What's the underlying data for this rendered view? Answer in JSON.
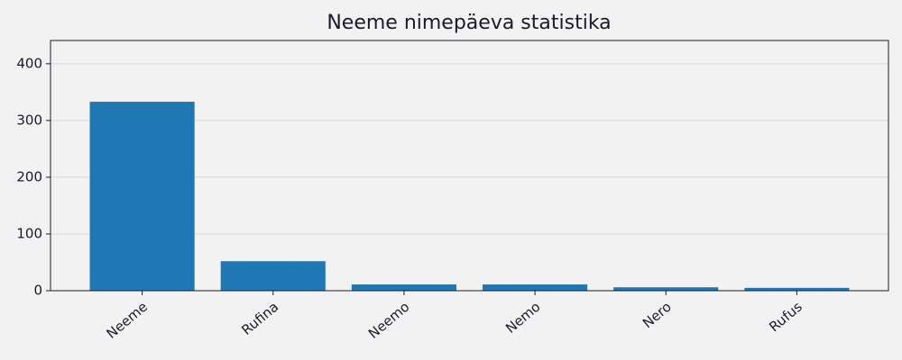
{
  "chart_data": {
    "type": "bar",
    "title": "Neeme nimepäeva statistika",
    "categories": [
      "Neeme",
      "Rufina",
      "Neemo",
      "Nemo",
      "Nero",
      "Rufus"
    ],
    "values": [
      333,
      52,
      11,
      11,
      6,
      5
    ],
    "color": "#1f77b4",
    "ylim": [
      0,
      441
    ],
    "yticks": [
      0,
      100,
      200,
      300,
      400
    ],
    "grid": true
  }
}
